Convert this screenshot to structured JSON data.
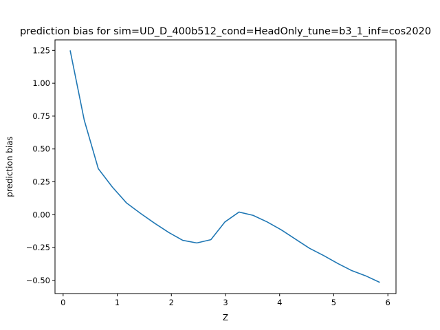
{
  "chart_data": {
    "type": "line",
    "title": "prediction bias for sim=UD_D_400b512_cond=HeadOnly_tune=b3_1_inf=cos2020",
    "xlabel": "Z",
    "ylabel": "prediction bias",
    "xlim": [
      -0.15,
      6.15
    ],
    "ylim": [
      -0.6,
      1.33
    ],
    "xticks": [
      0,
      1,
      2,
      3,
      4,
      5,
      6
    ],
    "yticks": [
      -0.5,
      -0.25,
      0.0,
      0.25,
      0.5,
      0.75,
      1.0,
      1.25
    ],
    "ytick_labels": [
      "−0.50",
      "−0.25",
      "0.00",
      "0.25",
      "0.50",
      "0.75",
      "1.00",
      "1.25"
    ],
    "grid": false,
    "series": [
      {
        "color": "#1f77b4",
        "x": [
          0.13,
          0.39,
          0.65,
          0.91,
          1.17,
          1.43,
          1.69,
          1.95,
          2.21,
          2.47,
          2.73,
          2.99,
          3.25,
          3.51,
          3.77,
          4.03,
          4.29,
          4.55,
          4.81,
          5.07,
          5.33,
          5.59,
          5.85
        ],
        "y": [
          1.25,
          0.72,
          0.35,
          0.21,
          0.09,
          0.01,
          -0.065,
          -0.135,
          -0.195,
          -0.215,
          -0.19,
          -0.055,
          0.02,
          -0.005,
          -0.055,
          -0.115,
          -0.185,
          -0.255,
          -0.31,
          -0.37,
          -0.425,
          -0.465,
          -0.515
        ]
      }
    ]
  }
}
